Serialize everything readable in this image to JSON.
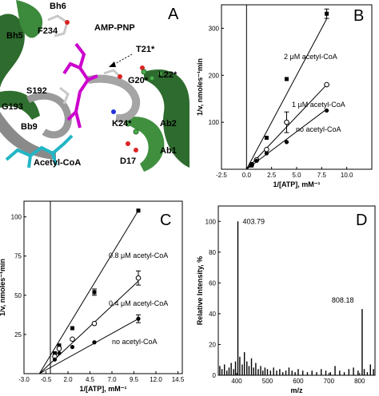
{
  "panel_a": {
    "letter": "A",
    "labels": {
      "bh6": "Bh6",
      "bh5": "Bh5",
      "f234": "F234",
      "amppnp": "AMP-PNP",
      "t21": "T21*",
      "l22": "L22*",
      "g20": "G20*",
      "s192": "S192",
      "g193": "G193",
      "bb9": "Bb9",
      "k24": "K24*",
      "ab2": "Ab2",
      "acetylcoa": "Acetyl-CoA",
      "d17": "D17",
      "ab1": "Ab1"
    }
  },
  "chart_data": [
    {
      "panel": "B",
      "type": "scatter",
      "xlabel": "1/[ATP], mM⁻¹",
      "ylabel": "1/v, nmoles⁻¹min",
      "xlim": [
        -2.5,
        12.5
      ],
      "ylim": [
        0,
        350
      ],
      "xticks": [
        -2.5,
        0.0,
        2.5,
        5.0,
        7.5,
        10.0
      ],
      "xtick_labels": [
        "-2.5",
        "0.0",
        "2.5",
        "5.0",
        "7.5",
        "10.0"
      ],
      "yticks": [
        100,
        200,
        300
      ],
      "ytick_labels": [
        "100",
        "200",
        "300"
      ],
      "series": [
        {
          "name": "2 μM acetyl-CoA",
          "marker": "square",
          "x": [
            0.5,
            1.0,
            2.0,
            4.0,
            8.0
          ],
          "y": [
            8,
            20,
            67,
            192,
            331
          ],
          "err": [
            0,
            0,
            0,
            0,
            10
          ],
          "line": [
            [
              0,
              0
            ],
            [
              8,
              320
            ]
          ]
        },
        {
          "name": "1 μM acetyl-CoA",
          "marker": "open-circle",
          "x": [
            0.5,
            1.0,
            2.0,
            4.0,
            8.0
          ],
          "y": [
            10,
            20,
            42,
            100,
            180
          ],
          "err": [
            0,
            0,
            0,
            22,
            0
          ],
          "line": [
            [
              0,
              0
            ],
            [
              8,
              180
            ]
          ]
        },
        {
          "name": "no acetyl-CoA",
          "marker": "filled-circle",
          "x": [
            0.5,
            1.0,
            2.0,
            4.0,
            8.0
          ],
          "y": [
            10,
            18,
            34,
            58,
            125
          ],
          "err": [
            0,
            0,
            0,
            0,
            0
          ],
          "line": [
            [
              0,
              0
            ],
            [
              8,
              128
            ]
          ]
        }
      ]
    },
    {
      "panel": "C",
      "type": "scatter",
      "xlabel": "1/[ATP], mM⁻¹",
      "ylabel": "1/v, nmoles⁻¹min",
      "xlim": [
        -3.0,
        15.0
      ],
      "ylim": [
        0,
        110
      ],
      "xticks": [
        -3.0,
        -0.5,
        2.0,
        4.5,
        7.0,
        9.5,
        12.0,
        14.5
      ],
      "xtick_labels": [
        "-3.0",
        "-0.5",
        "2.0",
        "4.5",
        "7.0",
        "9.5",
        "12.0",
        "14.5"
      ],
      "yticks": [
        25,
        50,
        75,
        100
      ],
      "ytick_labels": [
        "25",
        "50",
        "75",
        "100"
      ],
      "series": [
        {
          "name": "0.8 μM acetyl-CoA",
          "marker": "square",
          "x": [
            0.5,
            1.0,
            2.5,
            5.0,
            10.0
          ],
          "y": [
            13,
            18,
            29,
            52,
            104
          ],
          "err": [
            0,
            0,
            0,
            2,
            0
          ],
          "line": [
            [
              -1.25,
              0
            ],
            [
              10,
              104
            ]
          ]
        },
        {
          "name": "0.4 μM acetyl-CoA",
          "marker": "open-circle",
          "x": [
            0.5,
            1.0,
            2.5,
            5.0,
            10.0
          ],
          "y": [
            11,
            16,
            22,
            32,
            61
          ],
          "err": [
            0,
            0,
            0,
            0,
            4.5
          ],
          "line": [
            [
              -1.25,
              0
            ],
            [
              10,
              59
            ]
          ]
        },
        {
          "name": "no acetyl-CoA",
          "marker": "filled-circle",
          "x": [
            0.5,
            1.0,
            2.5,
            5.0,
            10.0
          ],
          "y": [
            9,
            13,
            17,
            20,
            35
          ],
          "err": [
            0,
            0,
            0,
            0,
            2.5
          ],
          "line": [
            [
              -1.25,
              0
            ],
            [
              10,
              35
            ]
          ]
        }
      ]
    },
    {
      "panel": "D",
      "type": "bar",
      "xlabel": "m/z",
      "ylabel": "Relative Intensity, %",
      "xlim": [
        340,
        850
      ],
      "ylim": [
        0,
        110
      ],
      "xticks": [
        400,
        500,
        600,
        700,
        800
      ],
      "xtick_labels": [
        "400",
        "500",
        "600",
        "700",
        "800"
      ],
      "yticks": [
        0,
        20,
        40,
        60,
        80,
        100
      ],
      "ytick_labels": [
        "0",
        "20",
        "40",
        "60",
        "80",
        "100"
      ],
      "annotations": [
        {
          "text": "403.79",
          "x": 403.79,
          "y": 100
        },
        {
          "text": "808.18",
          "x": 808.18,
          "y": 43
        }
      ],
      "x": [
        345,
        352,
        360,
        368,
        375,
        382,
        390,
        396,
        403.79,
        410,
        418,
        425,
        433,
        440,
        448,
        455,
        462,
        470,
        478,
        485,
        492,
        500,
        510,
        520,
        530,
        540,
        550,
        560,
        570,
        580,
        590,
        600,
        615,
        630,
        645,
        660,
        675,
        690,
        705,
        720,
        735,
        750,
        765,
        780,
        795,
        808.18,
        815,
        825,
        835,
        845
      ],
      "values": [
        6,
        4,
        7,
        3,
        5,
        8,
        4,
        9,
        100,
        12,
        7,
        15,
        9,
        6,
        11,
        5,
        8,
        4,
        6,
        3,
        5,
        4,
        3,
        5,
        3,
        4,
        2,
        3,
        5,
        3,
        2,
        4,
        3,
        2,
        3,
        2,
        4,
        3,
        2,
        6,
        3,
        2,
        4,
        5,
        3,
        43,
        4,
        2,
        7,
        4
      ]
    }
  ]
}
